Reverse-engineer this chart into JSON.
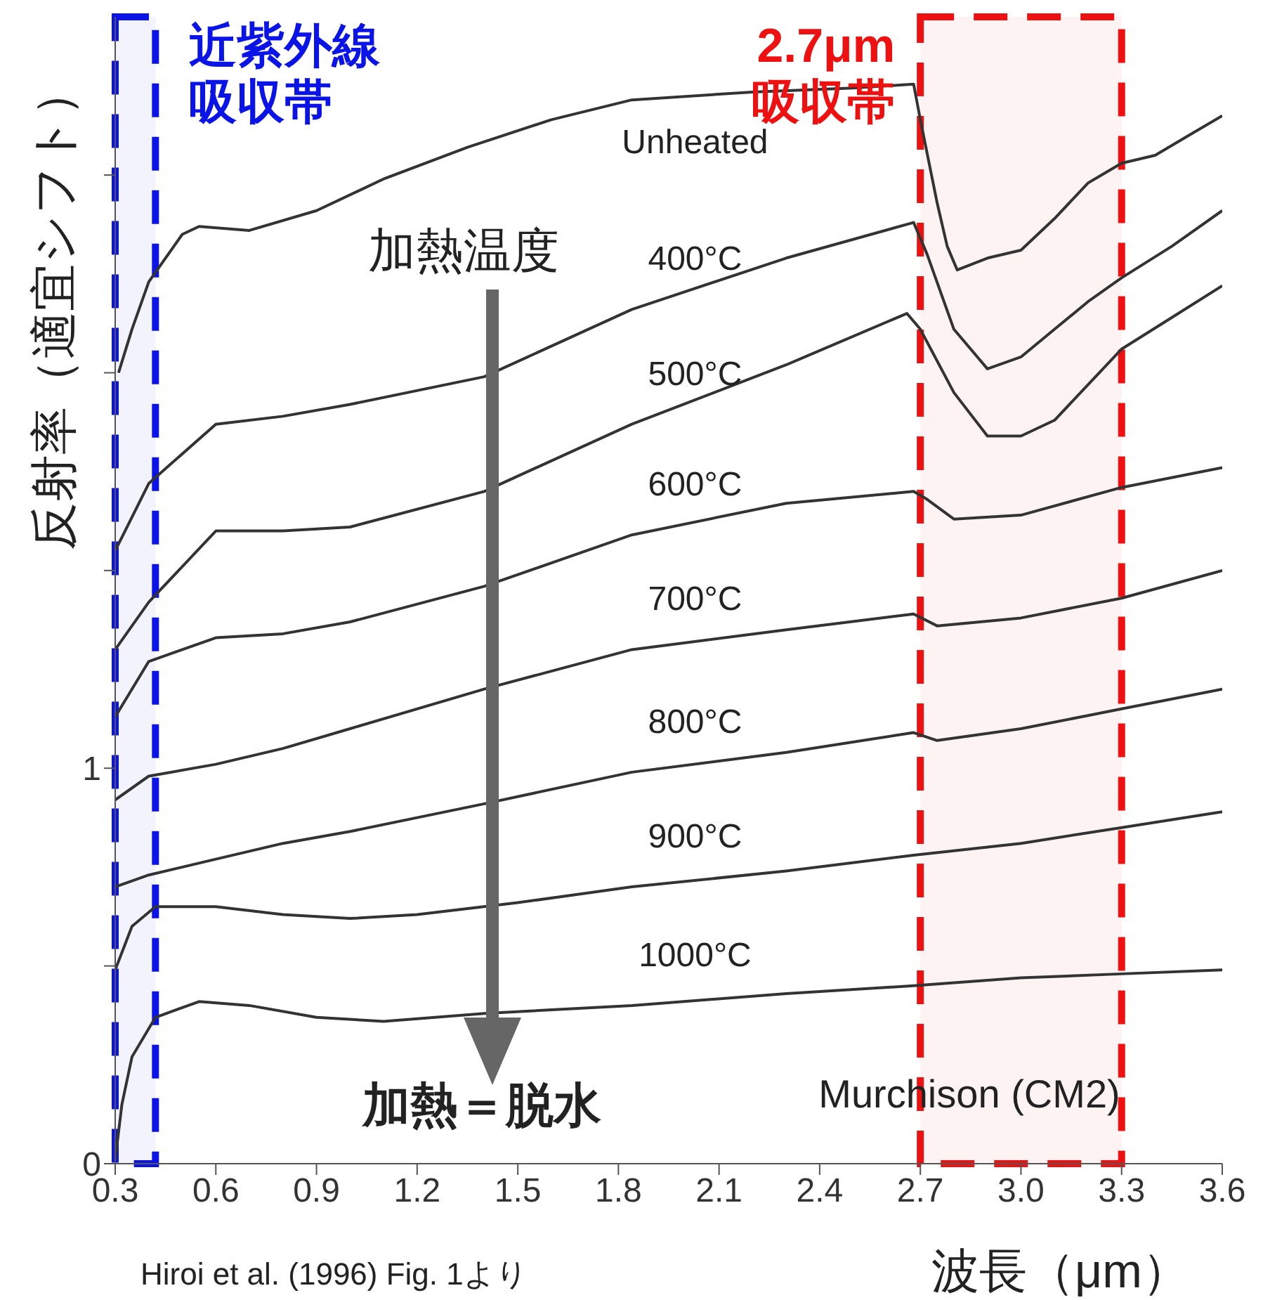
{
  "chart_data": {
    "type": "line",
    "xlabel": "波長（μm）",
    "ylabel": "反射率（適宜シフト）",
    "xlim": [
      0.3,
      3.6
    ],
    "xticks": [
      0.3,
      0.6,
      0.9,
      1.2,
      1.5,
      1.8,
      2.1,
      2.4,
      2.7,
      {
        "value": 3.0,
        "label": "3.0"
      },
      3.3,
      3.6
    ],
    "ylim": [
      0,
      2.9
    ],
    "yticks": [
      0,
      {
        "value": 0.5,
        "label": null
      },
      1,
      {
        "value": 1.5,
        "label": null
      },
      {
        "value": 2,
        "label": null
      },
      {
        "value": 2.5,
        "label": null
      }
    ],
    "series": [
      {
        "name": "Unheated",
        "color": "#333333",
        "x": [
          0.31,
          0.35,
          0.4,
          0.5,
          0.55,
          0.7,
          0.9,
          1.1,
          1.35,
          1.6,
          1.84,
          2.2,
          2.5,
          2.68,
          2.7,
          2.75,
          2.78,
          2.81,
          2.9,
          3.0,
          3.1,
          3.2,
          3.3,
          3.4,
          3.5,
          3.6
        ],
        "values": [
          2.0,
          2.11,
          2.23,
          2.35,
          2.37,
          2.36,
          2.41,
          2.49,
          2.57,
          2.64,
          2.69,
          2.71,
          2.72,
          2.73,
          2.64,
          2.43,
          2.32,
          2.26,
          2.29,
          2.31,
          2.39,
          2.48,
          2.53,
          2.55,
          2.6,
          2.65
        ]
      },
      {
        "name": "400°C",
        "color": "#333333",
        "x": [
          0.3,
          0.4,
          0.6,
          0.8,
          1.0,
          1.4,
          1.84,
          2.3,
          2.68,
          2.72,
          2.8,
          2.9,
          3.0,
          3.1,
          3.2,
          3.3,
          3.45,
          3.6
        ],
        "values": [
          1.55,
          1.72,
          1.87,
          1.89,
          1.92,
          1.99,
          2.16,
          2.29,
          2.38,
          2.3,
          2.11,
          2.01,
          2.04,
          2.11,
          2.18,
          2.24,
          2.32,
          2.41
        ]
      },
      {
        "name": "500°C",
        "color": "#333333",
        "x": [
          0.3,
          0.4,
          0.6,
          0.8,
          1.0,
          1.4,
          1.84,
          2.3,
          2.66,
          2.7,
          2.8,
          2.9,
          3.0,
          3.1,
          3.2,
          3.3,
          3.45,
          3.6
        ],
        "values": [
          1.3,
          1.42,
          1.6,
          1.6,
          1.61,
          1.7,
          1.87,
          2.02,
          2.15,
          2.11,
          1.95,
          1.84,
          1.84,
          1.88,
          1.97,
          2.06,
          2.14,
          2.22
        ]
      },
      {
        "name": "600°C",
        "color": "#333333",
        "x": [
          0.3,
          0.4,
          0.6,
          0.8,
          1.0,
          1.4,
          1.84,
          2.3,
          2.68,
          2.72,
          2.8,
          3.0,
          3.3,
          3.6
        ],
        "values": [
          1.13,
          1.27,
          1.33,
          1.34,
          1.37,
          1.46,
          1.59,
          1.67,
          1.7,
          1.68,
          1.63,
          1.64,
          1.71,
          1.76
        ]
      },
      {
        "name": "700°C",
        "color": "#333333",
        "x": [
          0.3,
          0.4,
          0.6,
          0.8,
          1.0,
          1.4,
          1.84,
          2.3,
          2.68,
          2.75,
          3.0,
          3.3,
          3.6
        ],
        "values": [
          0.92,
          0.98,
          1.01,
          1.05,
          1.1,
          1.2,
          1.3,
          1.35,
          1.39,
          1.36,
          1.38,
          1.43,
          1.5
        ]
      },
      {
        "name": "800°C",
        "color": "#333333",
        "x": [
          0.3,
          0.4,
          0.6,
          0.8,
          1.0,
          1.4,
          1.84,
          2.3,
          2.68,
          2.75,
          3.0,
          3.3,
          3.6
        ],
        "values": [
          0.7,
          0.73,
          0.77,
          0.81,
          0.84,
          0.91,
          0.99,
          1.04,
          1.09,
          1.07,
          1.1,
          1.15,
          1.2
        ]
      },
      {
        "name": "900°C",
        "color": "#333333",
        "x": [
          0.3,
          0.35,
          0.42,
          0.6,
          0.8,
          1.0,
          1.2,
          1.5,
          1.84,
          2.3,
          2.68,
          3.0,
          3.3,
          3.6
        ],
        "values": [
          0.49,
          0.6,
          0.65,
          0.65,
          0.63,
          0.62,
          0.63,
          0.66,
          0.7,
          0.74,
          0.78,
          0.81,
          0.85,
          0.89
        ]
      },
      {
        "name": "1000°C",
        "color": "#333333",
        "x": [
          0.3,
          0.32,
          0.35,
          0.42,
          0.55,
          0.7,
          0.9,
          1.1,
          1.4,
          1.84,
          2.3,
          2.68,
          3.0,
          3.3,
          3.6
        ],
        "values": [
          0.01,
          0.15,
          0.27,
          0.37,
          0.41,
          0.4,
          0.37,
          0.36,
          0.38,
          0.4,
          0.43,
          0.45,
          0.47,
          0.48,
          0.49
        ]
      }
    ],
    "bands": [
      {
        "axis": "x",
        "from": 0.3,
        "to": 0.42,
        "label": "近紫外線吸収帯",
        "color": "#0a14e6"
      },
      {
        "axis": "x",
        "from": 2.7,
        "to": 3.3,
        "label": "2.7μm吸収帯",
        "color": "#ee1111"
      }
    ],
    "annotations": [
      "加熱温度",
      "加熱＝脱水",
      "Murchison (CM2)",
      "Hiroi et al. (1996) Fig. 1より"
    ],
    "line_style": "solid"
  }
}
